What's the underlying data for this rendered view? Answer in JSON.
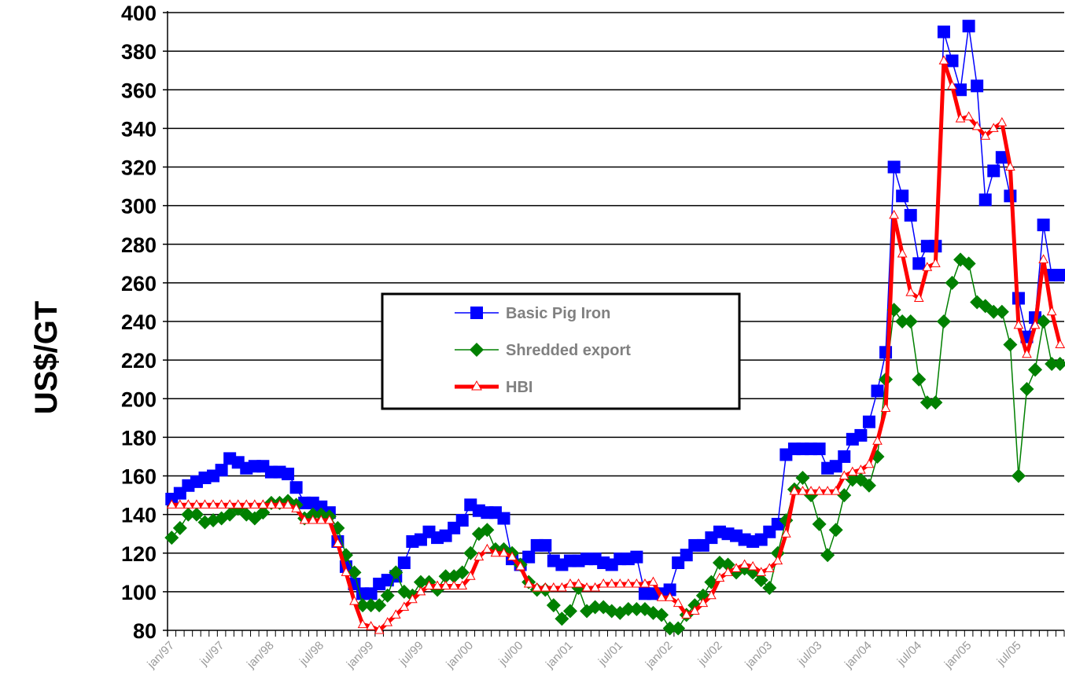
{
  "chart_data": {
    "type": "line",
    "ylabel": "US$/GT",
    "xlabel": "",
    "ylim": [
      80,
      400
    ],
    "yticks": [
      "80",
      "100",
      "120",
      "140",
      "160",
      "180",
      "200",
      "220",
      "240",
      "260",
      "280",
      "300",
      "320",
      "340",
      "360",
      "380",
      "400"
    ],
    "x_tick_labels": [
      "jan/97",
      "jul/97",
      "jan/98",
      "jul/98",
      "jan/99",
      "jul/99",
      "jan/00",
      "jul/00",
      "jan/01",
      "jul/01",
      "jan/02",
      "jul/02",
      "jan/03",
      "jul/03",
      "jan/04",
      "jul/04",
      "jan/05",
      "jul/05"
    ],
    "grid": "horizontal",
    "legend_placement": "center",
    "x_start": "jan/97",
    "months": 108,
    "series": [
      {
        "name": "Basic Pig Iron",
        "color": "#0000ff",
        "marker": "square",
        "values": [
          148,
          151,
          155,
          157,
          159,
          160,
          163,
          169,
          167,
          164,
          165,
          165,
          162,
          162,
          161,
          154,
          146,
          146,
          144,
          141,
          126,
          113,
          104,
          99,
          99,
          104,
          106,
          108,
          115,
          126,
          127,
          131,
          128,
          129,
          133,
          137,
          145,
          142,
          141,
          141,
          138,
          117,
          114,
          118,
          124,
          124,
          116,
          114,
          116,
          116,
          117,
          117,
          115,
          114,
          117,
          117,
          118,
          99,
          99,
          99,
          101,
          115,
          119,
          124,
          124,
          128,
          131,
          130,
          129,
          127,
          126,
          127,
          131,
          135,
          171,
          174,
          174,
          174,
          174,
          164,
          165,
          170,
          179,
          181,
          188,
          204,
          224,
          320,
          305,
          295,
          270,
          279,
          279,
          390,
          375,
          360,
          393,
          362,
          303,
          318,
          325,
          305,
          252,
          232,
          242,
          290,
          264,
          264
        ]
      },
      {
        "name": "Shredded export",
        "color": "#008000",
        "marker": "diamond",
        "values": [
          128,
          133,
          140,
          140,
          136,
          137,
          138,
          140,
          143,
          140,
          138,
          141,
          146,
          146,
          147,
          145,
          138,
          140,
          140,
          139,
          133,
          119,
          110,
          93,
          93,
          93,
          98,
          110,
          100,
          98,
          105,
          105,
          101,
          108,
          108,
          110,
          120,
          130,
          132,
          122,
          122,
          120,
          114,
          105,
          101,
          101,
          93,
          86,
          90,
          102,
          90,
          92,
          92,
          90,
          89,
          91,
          91,
          91,
          89,
          88,
          81,
          81,
          88,
          93,
          98,
          105,
          115,
          114,
          110,
          112,
          110,
          106,
          102,
          120,
          137,
          153,
          159,
          150,
          135,
          119,
          132,
          150,
          158,
          158,
          155,
          170,
          210,
          246,
          240,
          240,
          210,
          198,
          198,
          240,
          260,
          272,
          270,
          250,
          248,
          245,
          245,
          228,
          160,
          205,
          215,
          240,
          218,
          218
        ]
      },
      {
        "name": "HBI",
        "color": "#ff0000",
        "marker": "triangle",
        "values": [
          145,
          145,
          145,
          145,
          145,
          145,
          145,
          145,
          145,
          145,
          145,
          145,
          145,
          145,
          145,
          143,
          137,
          137,
          137,
          137,
          125,
          110,
          95,
          83,
          82,
          80,
          84,
          88,
          92,
          96,
          100,
          103,
          103,
          103,
          103,
          103,
          108,
          118,
          122,
          120,
          120,
          118,
          113,
          104,
          102,
          102,
          102,
          102,
          104,
          104,
          102,
          102,
          104,
          104,
          104,
          104,
          104,
          104,
          105,
          97,
          97,
          94,
          88,
          90,
          94,
          98,
          107,
          110,
          112,
          114,
          113,
          110,
          112,
          116,
          130,
          152,
          152,
          152,
          152,
          152,
          152,
          160,
          162,
          163,
          166,
          178,
          195,
          295,
          275,
          255,
          252,
          268,
          270,
          375,
          362,
          345,
          346,
          341,
          336,
          340,
          343,
          320,
          238,
          223,
          238,
          272,
          245,
          228
        ]
      }
    ]
  }
}
